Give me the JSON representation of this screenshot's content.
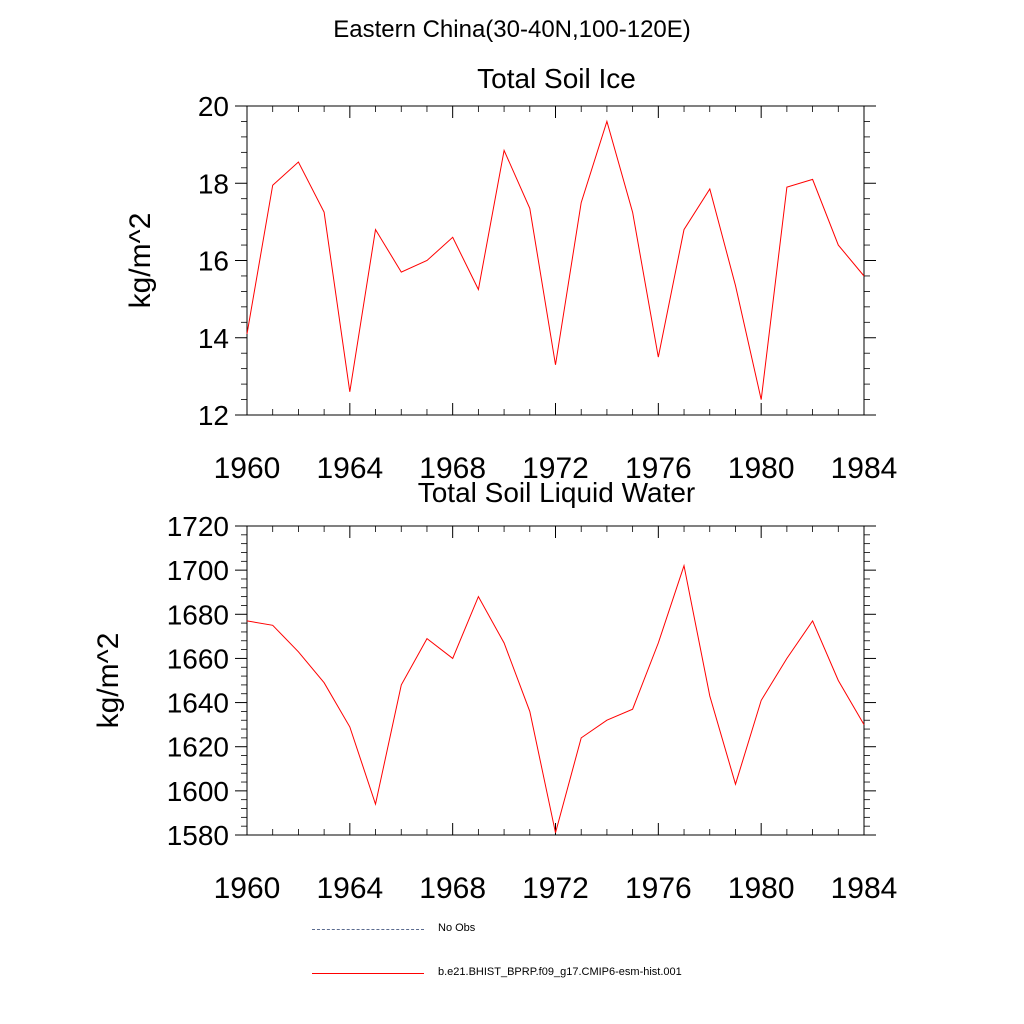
{
  "figure": {
    "title": "Eastern China(30-40N,100-120E)"
  },
  "chart_data": [
    {
      "type": "line",
      "title": "Total Soil Ice",
      "xlabel": "",
      "ylabel": "kg/m^2",
      "xlim": [
        1960,
        1984
      ],
      "ylim": [
        12,
        20
      ],
      "xticks": [
        1960,
        1964,
        1968,
        1972,
        1976,
        1980,
        1984
      ],
      "yticks": [
        12,
        14,
        16,
        18,
        20
      ],
      "grid": false,
      "series": [
        {
          "name": "b.e21.BHIST_BPRP.f09_g17.CMIP6-esm-hist.001",
          "color": "#ff0000",
          "x": [
            1960,
            1961,
            1962,
            1963,
            1964,
            1965,
            1966,
            1967,
            1968,
            1969,
            1970,
            1971,
            1972,
            1973,
            1974,
            1975,
            1976,
            1977,
            1978,
            1979,
            1980,
            1981,
            1982,
            1983,
            1984
          ],
          "y": [
            14.1,
            17.95,
            18.55,
            17.25,
            12.6,
            16.8,
            15.7,
            16.0,
            16.6,
            15.25,
            18.85,
            17.35,
            13.3,
            17.5,
            19.6,
            17.25,
            13.5,
            16.8,
            17.85,
            15.35,
            12.4,
            17.9,
            18.1,
            16.4,
            15.6
          ]
        }
      ]
    },
    {
      "type": "line",
      "title": "Total Soil Liquid Water",
      "xlabel": "",
      "ylabel": "kg/m^2",
      "xlim": [
        1960,
        1984
      ],
      "ylim": [
        1580,
        1720
      ],
      "xticks": [
        1960,
        1964,
        1968,
        1972,
        1976,
        1980,
        1984
      ],
      "yticks": [
        1580,
        1600,
        1620,
        1640,
        1660,
        1680,
        1700,
        1720
      ],
      "grid": false,
      "series": [
        {
          "name": "b.e21.BHIST_BPRP.f09_g17.CMIP6-esm-hist.001",
          "color": "#ff0000",
          "x": [
            1960,
            1961,
            1962,
            1963,
            1964,
            1965,
            1966,
            1967,
            1968,
            1969,
            1970,
            1971,
            1972,
            1973,
            1974,
            1975,
            1976,
            1977,
            1978,
            1979,
            1980,
            1981,
            1982,
            1983,
            1984
          ],
          "y": [
            1677,
            1675,
            1663,
            1649,
            1629,
            1594,
            1648,
            1669,
            1660,
            1688,
            1667,
            1636,
            1581,
            1624,
            1632,
            1637,
            1667,
            1702,
            1643,
            1603,
            1641,
            1660,
            1677,
            1650,
            1630
          ]
        }
      ]
    }
  ],
  "legend": {
    "items": [
      {
        "label": "No Obs",
        "style": "dashed",
        "color": "#5b6b8f"
      },
      {
        "label": "b.e21.BHIST_BPRP.f09_g17.CMIP6-esm-hist.001",
        "style": "solid",
        "color": "#ff0000"
      }
    ]
  }
}
